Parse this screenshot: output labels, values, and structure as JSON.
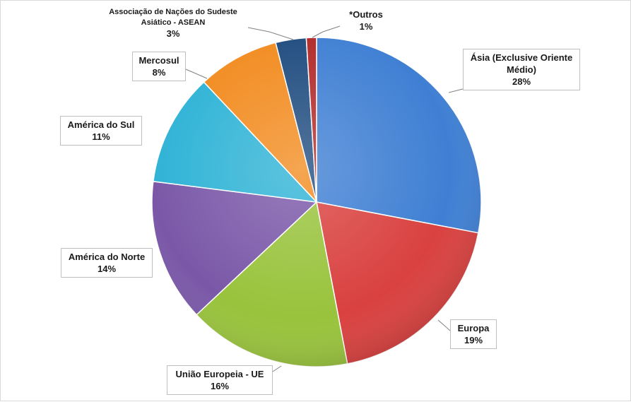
{
  "chart_data": {
    "type": "pie",
    "title": "",
    "slices": [
      {
        "label": "Ásia (Exclusive Oriente\nMédio)",
        "value": 28,
        "pct_label": "28%",
        "color": "#3f7fd3"
      },
      {
        "label": "Europa",
        "value": 19,
        "pct_label": "19%",
        "color": "#d9413f"
      },
      {
        "label": "União Europeia - UE",
        "value": 16,
        "pct_label": "16%",
        "color": "#99c33c"
      },
      {
        "label": "América do Norte",
        "value": 14,
        "pct_label": "14%",
        "color": "#7a58a8"
      },
      {
        "label": "América do Sul",
        "value": 11,
        "pct_label": "11%",
        "color": "#2fb3d6"
      },
      {
        "label": "Mercosul",
        "value": 8,
        "pct_label": "8%",
        "color": "#f28b1f"
      },
      {
        "label": "Associação  de Nações do Sudeste\nAsiático  - ASEAN",
        "value": 3,
        "pct_label": "3%",
        "color": "#1f4c7f"
      },
      {
        "label": "*Outros",
        "value": 1,
        "pct_label": "1%",
        "color": "#b22a2a"
      }
    ],
    "legend": "none",
    "data_labels": "callouts"
  }
}
